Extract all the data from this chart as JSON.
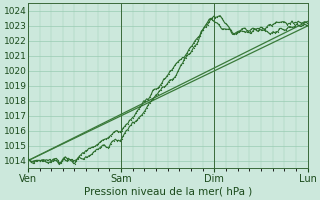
{
  "title": "Pression niveau de la mer( hPa )",
  "background_color": "#cce8dc",
  "plot_bg_color": "#cce8dc",
  "grid_color": "#99ccb3",
  "ylim": [
    1013.5,
    1024.5
  ],
  "yticks": [
    1014,
    1015,
    1016,
    1017,
    1018,
    1019,
    1020,
    1021,
    1022,
    1023,
    1024
  ],
  "xtick_labels": [
    "Ven",
    "Sam",
    "Dim",
    "Lun"
  ],
  "xtick_positions": [
    0,
    1,
    2,
    3
  ],
  "dark_green": "#2d6e2d",
  "smooth_color": "#3a7a3a",
  "xlim": [
    0,
    3
  ]
}
